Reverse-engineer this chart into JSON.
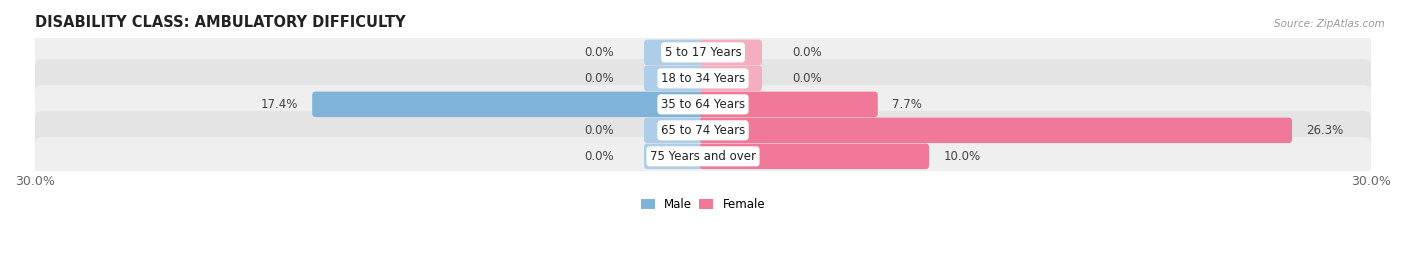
{
  "title": "DISABILITY CLASS: AMBULATORY DIFFICULTY",
  "source": "Source: ZipAtlas.com",
  "categories": [
    "5 to 17 Years",
    "18 to 34 Years",
    "35 to 64 Years",
    "65 to 74 Years",
    "75 Years and over"
  ],
  "male_values": [
    0.0,
    0.0,
    17.4,
    0.0,
    0.0
  ],
  "female_values": [
    0.0,
    0.0,
    7.7,
    26.3,
    10.0
  ],
  "male_color": "#7fb3d8",
  "female_color": "#f07898",
  "male_stub_color": "#aecde8",
  "female_stub_color": "#f5aec0",
  "row_bg_color_odd": "#efefef",
  "row_bg_color_even": "#e4e4e4",
  "x_min": -30.0,
  "x_max": 30.0,
  "stub_size": 2.5,
  "x_tick_labels": [
    "30.0%",
    "30.0%"
  ],
  "legend_male": "Male",
  "legend_female": "Female",
  "title_fontsize": 10.5,
  "label_fontsize": 8.5,
  "value_fontsize": 8.5,
  "tick_fontsize": 9,
  "background_color": "#ffffff"
}
